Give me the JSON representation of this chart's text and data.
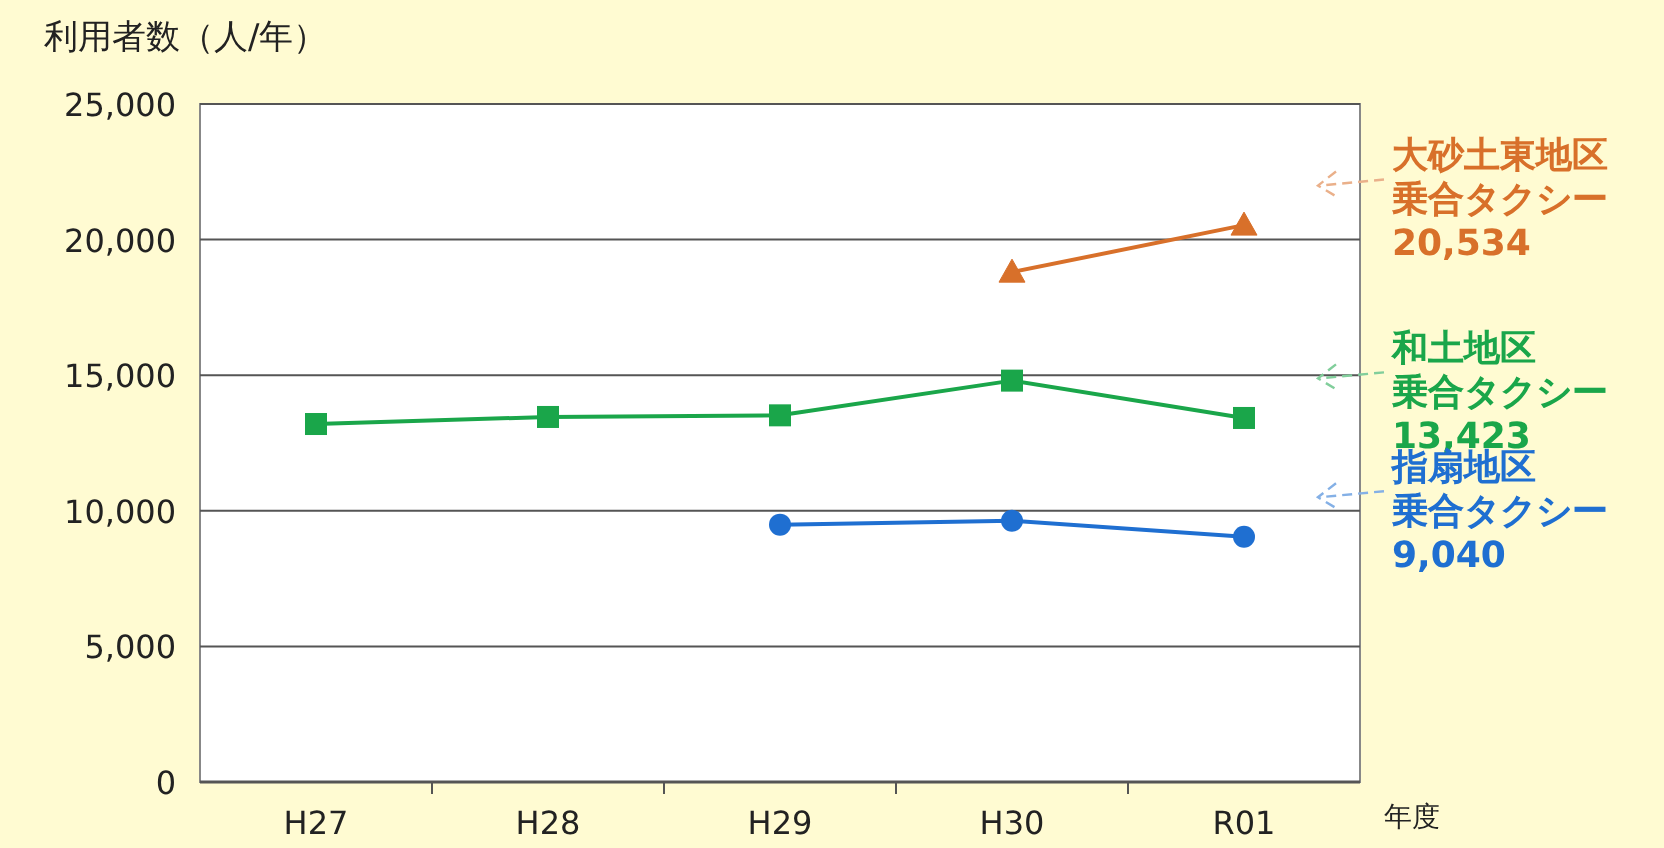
{
  "chart_data": {
    "type": "line",
    "ylabel": "利用者数（人/年）",
    "xlabel": "年度",
    "categories": [
      "H27",
      "H28",
      "H29",
      "H30",
      "R01"
    ],
    "ylim": [
      0,
      25000
    ],
    "yticks": [
      {
        "value": 0,
        "label": "0"
      },
      {
        "value": 5000,
        "label": "5,000"
      },
      {
        "value": 10000,
        "label": "10,000"
      },
      {
        "value": 15000,
        "label": "15,000"
      },
      {
        "value": 20000,
        "label": "20,000"
      },
      {
        "value": 25000,
        "label": "25,000"
      }
    ],
    "grid": "y",
    "legend": "right",
    "annotations": [
      "20,534",
      "13,423",
      "9,040"
    ],
    "series": [
      {
        "name": "大砂土東地区乗合タクシー",
        "color": "#d8702a",
        "marker": "triangle",
        "values": [
          null,
          null,
          null,
          18800,
          20534
        ]
      },
      {
        "name": "和土地区乗合タクシー",
        "color": "#1aa64a",
        "marker": "square",
        "values": [
          13200,
          13460,
          13520,
          14800,
          13423
        ]
      },
      {
        "name": "指扇地区乗合タクシー",
        "color": "#1f6fd1",
        "marker": "circle",
        "values": [
          null,
          null,
          9490,
          9630,
          9040
        ]
      }
    ]
  }
}
